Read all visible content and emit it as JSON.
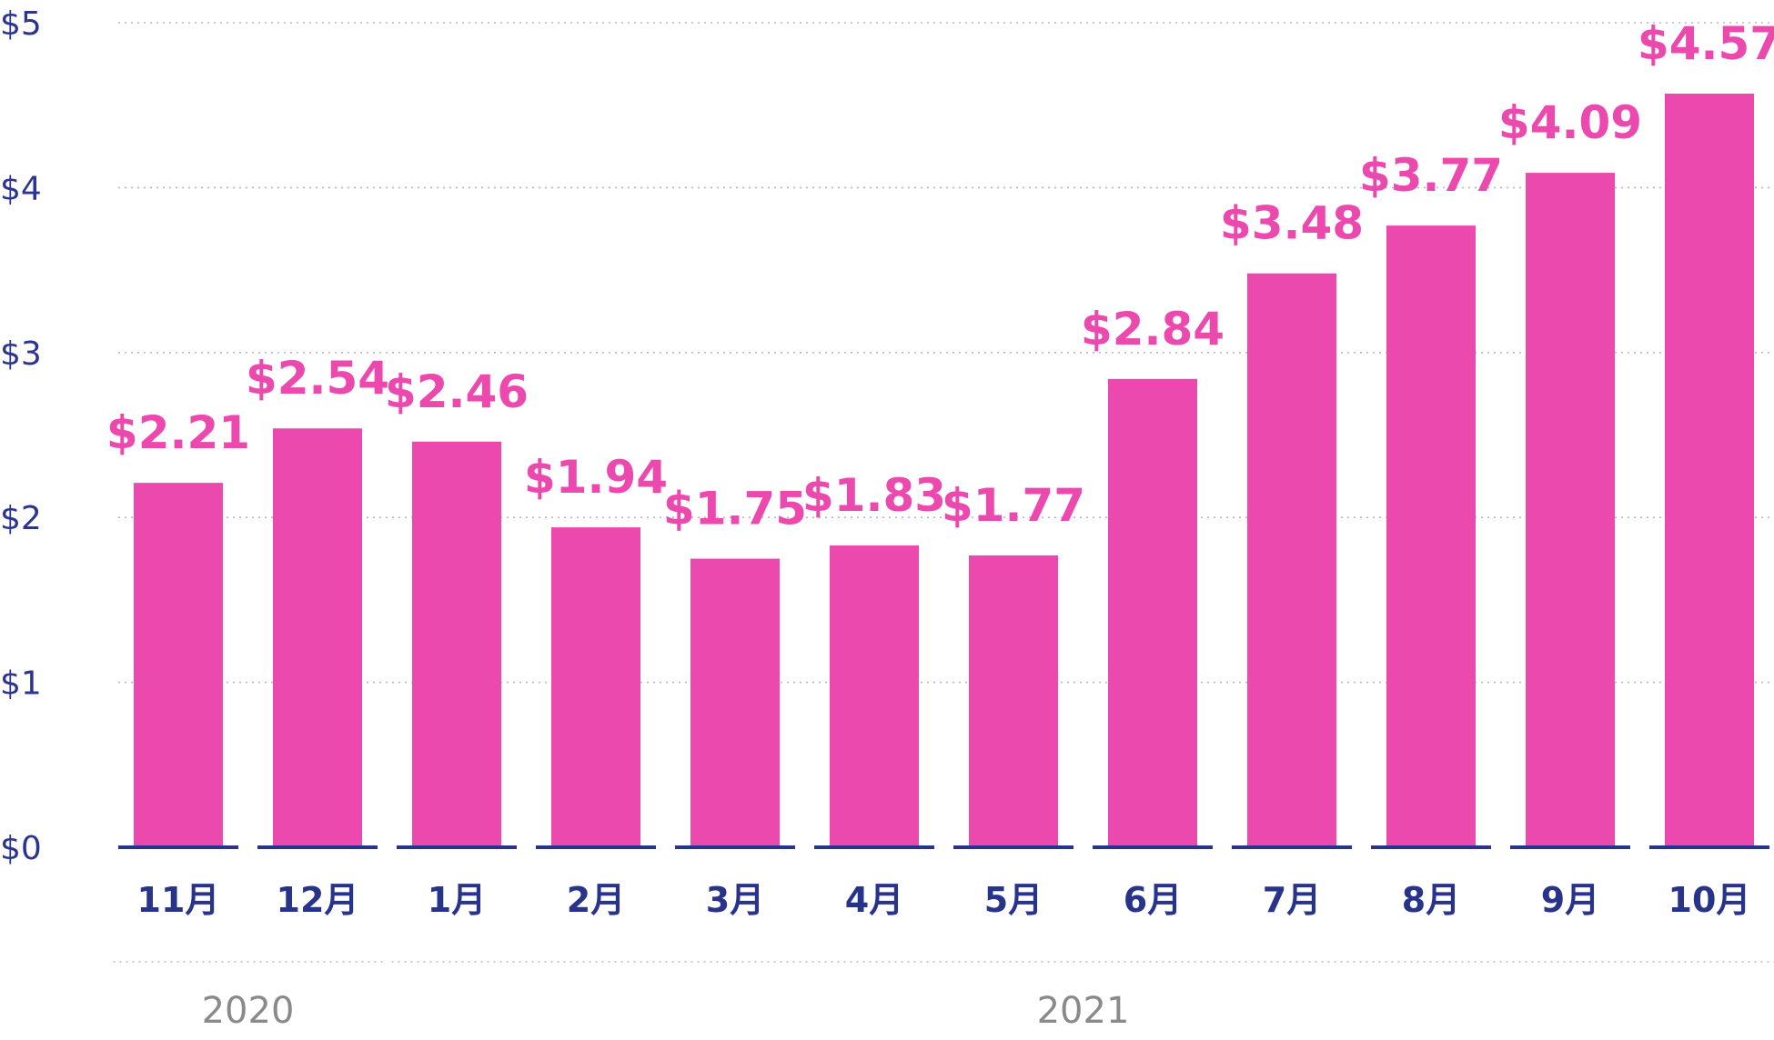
{
  "chart_data": {
    "type": "bar",
    "categories": [
      "11月",
      "12月",
      "1月",
      "2月",
      "3月",
      "4月",
      "5月",
      "6月",
      "7月",
      "8月",
      "9月",
      "10月"
    ],
    "values": [
      2.21,
      2.54,
      2.46,
      1.94,
      1.75,
      1.83,
      1.77,
      2.84,
      3.48,
      3.77,
      4.09,
      4.57
    ],
    "value_labels": [
      "$2.21",
      "$2.54",
      "$2.46",
      "$1.94",
      "$1.75",
      "$1.83",
      "$1.77",
      "$2.84",
      "$3.48",
      "$3.77",
      "$4.09",
      "$4.57"
    ],
    "y_ticks": [
      0,
      1,
      2,
      3,
      4,
      5
    ],
    "y_tick_labels": [
      "$0",
      "$1",
      "$2",
      "$3",
      "$4",
      "$5"
    ],
    "ylim": [
      0,
      5
    ],
    "grid": true,
    "year_groups": [
      {
        "label": "2020",
        "categories": [
          "11月",
          "12月"
        ]
      },
      {
        "label": "2021",
        "categories": [
          "1月",
          "2月",
          "3月",
          "4月",
          "5月",
          "6月",
          "7月",
          "8月",
          "9月",
          "10月"
        ]
      }
    ],
    "colors": {
      "bar": "#eb49ae",
      "value_label": "#eb49ae",
      "axis_text": "#28338a",
      "baseline": "#28338a",
      "year_text": "#8a8a8a",
      "grid": "#b9b9c4"
    }
  }
}
